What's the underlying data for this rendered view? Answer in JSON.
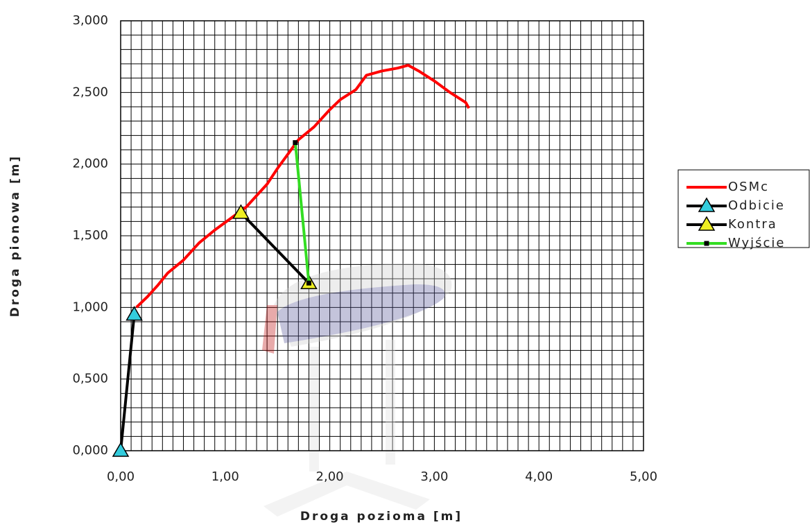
{
  "chart_data": {
    "type": "scatter",
    "x_label": "Droga pozioma [m]",
    "y_label": "Droga pionowa [m]",
    "xlim": [
      0,
      5
    ],
    "ylim": [
      0,
      3
    ],
    "xticks": [
      {
        "value": 0,
        "label": "0,00"
      },
      {
        "value": 1,
        "label": "1,00"
      },
      {
        "value": 2,
        "label": "2,00"
      },
      {
        "value": 3,
        "label": "3,00"
      },
      {
        "value": 4,
        "label": "4,00"
      },
      {
        "value": 5,
        "label": "5,00"
      }
    ],
    "yticks": [
      {
        "value": 0,
        "label": "0,000"
      },
      {
        "value": 0.5,
        "label": "0,500"
      },
      {
        "value": 1,
        "label": "1,000"
      },
      {
        "value": 1.5,
        "label": "1,500"
      },
      {
        "value": 2,
        "label": "2,000"
      },
      {
        "value": 2.5,
        "label": "2,500"
      },
      {
        "value": 3,
        "label": "3,000"
      }
    ],
    "x_minor_ticks": [
      0.1,
      0.2,
      0.3,
      0.4,
      0.5,
      0.6,
      0.7,
      0.8,
      0.9,
      1.1,
      1.2,
      1.3,
      1.4,
      1.5,
      1.6,
      1.7,
      1.8,
      1.9,
      2.1,
      2.2,
      2.3,
      2.4,
      2.5,
      2.6,
      2.7,
      2.8,
      2.9,
      3.1,
      3.2,
      3.3,
      3.4,
      3.5,
      3.6,
      3.7,
      3.8,
      3.9,
      4.1,
      4.2,
      4.3,
      4.4,
      4.5,
      4.6,
      4.7,
      4.8,
      4.9
    ],
    "y_minor_ticks": [
      0.1,
      0.2,
      0.3,
      0.4,
      0.6,
      0.7,
      0.8,
      0.9,
      1.1,
      1.2,
      1.3,
      1.4,
      1.6,
      1.7,
      1.8,
      1.9,
      2.1,
      2.2,
      2.3,
      2.4,
      2.6,
      2.7,
      2.8,
      2.9
    ],
    "grid": true,
    "legend": "right",
    "series": [
      {
        "name": "OSMc",
        "color": "#ff0000",
        "marker": "none",
        "x": [
          0.15,
          0.25,
          0.35,
          0.45,
          0.6,
          0.75,
          0.9,
          1.05,
          1.2,
          1.3,
          1.4,
          1.5,
          1.6,
          1.7,
          1.85,
          2.0,
          2.1,
          2.25,
          2.35,
          2.5,
          2.65,
          2.75,
          2.85,
          3.0,
          3.15,
          3.3,
          3.33
        ],
        "values": [
          1.0,
          1.07,
          1.15,
          1.24,
          1.33,
          1.45,
          1.54,
          1.62,
          1.7,
          1.78,
          1.86,
          1.97,
          2.07,
          2.17,
          2.26,
          2.38,
          2.45,
          2.52,
          2.62,
          2.65,
          2.67,
          2.69,
          2.65,
          2.58,
          2.5,
          2.43,
          2.39
        ]
      },
      {
        "name": "Odbicie",
        "color": "#000000",
        "marker": "triangle",
        "marker_color": "#33ccdd",
        "x": [
          0.0,
          0.13
        ],
        "values": [
          0.0,
          0.95
        ]
      },
      {
        "name": "Kontra",
        "color": "#000000",
        "marker": "triangle",
        "marker_color": "#eeee22",
        "x": [
          1.15,
          1.8
        ],
        "values": [
          1.66,
          1.17
        ]
      },
      {
        "name": "Wyjście",
        "color": "#33dd22",
        "marker": "square",
        "marker_color": "#000000",
        "x": [
          1.67,
          1.8
        ],
        "values": [
          2.15,
          1.17
        ]
      }
    ]
  }
}
